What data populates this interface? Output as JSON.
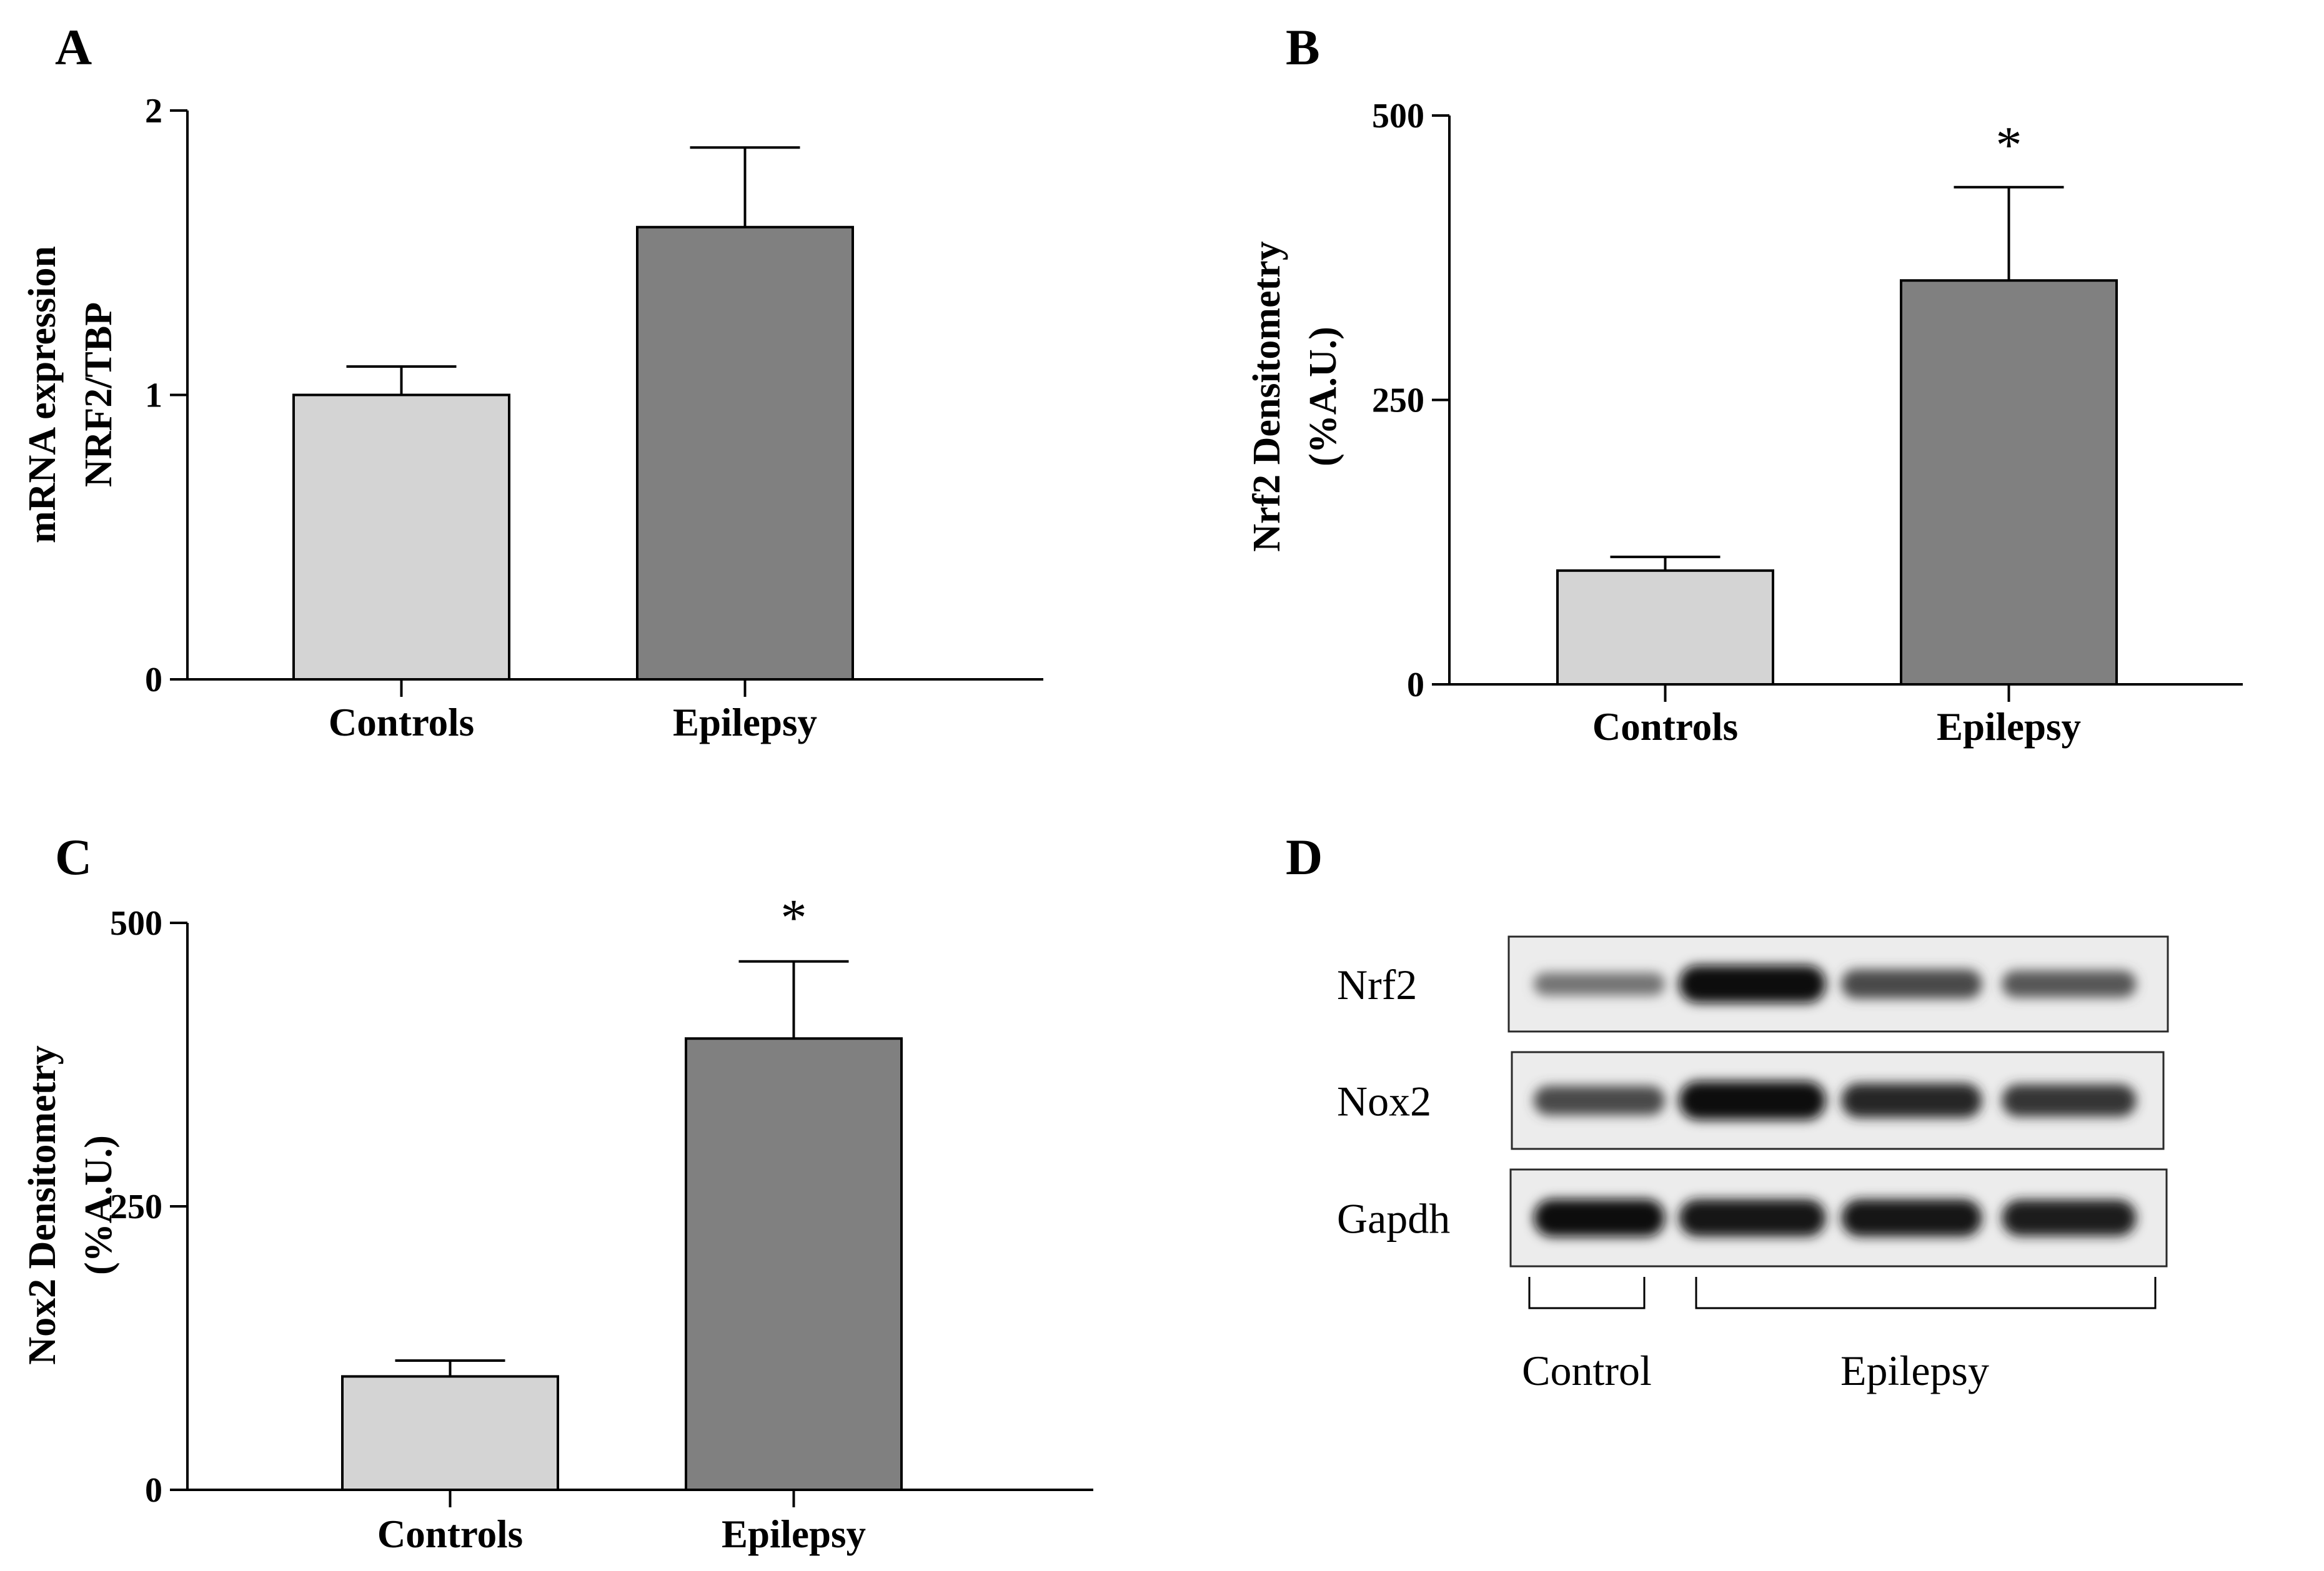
{
  "chart_data": [
    {
      "panel": "A",
      "type": "bar",
      "categories": [
        "Controls",
        "Epilepsy"
      ],
      "values": [
        1.0,
        1.59
      ],
      "errors": [
        0.1,
        0.28
      ],
      "colors": [
        "#d4d4d4",
        "#808080"
      ],
      "ylabel_lines": [
        "mRNA expression",
        "NRF2/TBP"
      ],
      "yticks": [
        "0",
        "1",
        "2"
      ],
      "ytick_values": [
        0,
        1,
        2
      ],
      "ylim": [
        0,
        2
      ],
      "significance": [
        "",
        ""
      ]
    },
    {
      "panel": "B",
      "type": "bar",
      "categories": [
        "Controls",
        "Epilepsy"
      ],
      "values": [
        100,
        355
      ],
      "errors": [
        12,
        82
      ],
      "colors": [
        "#d4d4d4",
        "#808080"
      ],
      "ylabel_lines": [
        "Nrf2 Densitometry",
        "(%A.U.)"
      ],
      "yticks": [
        "0",
        "250",
        "500"
      ],
      "ytick_values": [
        0,
        250,
        500
      ],
      "ylim": [
        0,
        500
      ],
      "significance": [
        "",
        "*"
      ]
    },
    {
      "panel": "C",
      "type": "bar",
      "categories": [
        "Controls",
        "Epilepsy"
      ],
      "values": [
        100,
        398
      ],
      "errors": [
        14,
        68
      ],
      "colors": [
        "#d4d4d4",
        "#808080"
      ],
      "ylabel_lines": [
        "Nox2 Densitometry",
        "(%A.U.)"
      ],
      "yticks": [
        "0",
        "250",
        "500"
      ],
      "ytick_values": [
        0,
        250,
        500
      ],
      "ylim": [
        0,
        500
      ],
      "significance": [
        "",
        "*"
      ]
    }
  ],
  "blot": {
    "panel": "D",
    "rows": [
      {
        "label": "Nrf2",
        "intensities": [
          0.25,
          0.95,
          0.55,
          0.45
        ]
      },
      {
        "label": "Nox2",
        "intensities": [
          0.55,
          1.0,
          0.8,
          0.7
        ]
      },
      {
        "label": "Gapdh",
        "intensities": [
          0.95,
          0.92,
          0.93,
          0.88
        ]
      }
    ],
    "groups": [
      {
        "label": "Control"
      },
      {
        "label": "Epilepsy"
      }
    ]
  }
}
